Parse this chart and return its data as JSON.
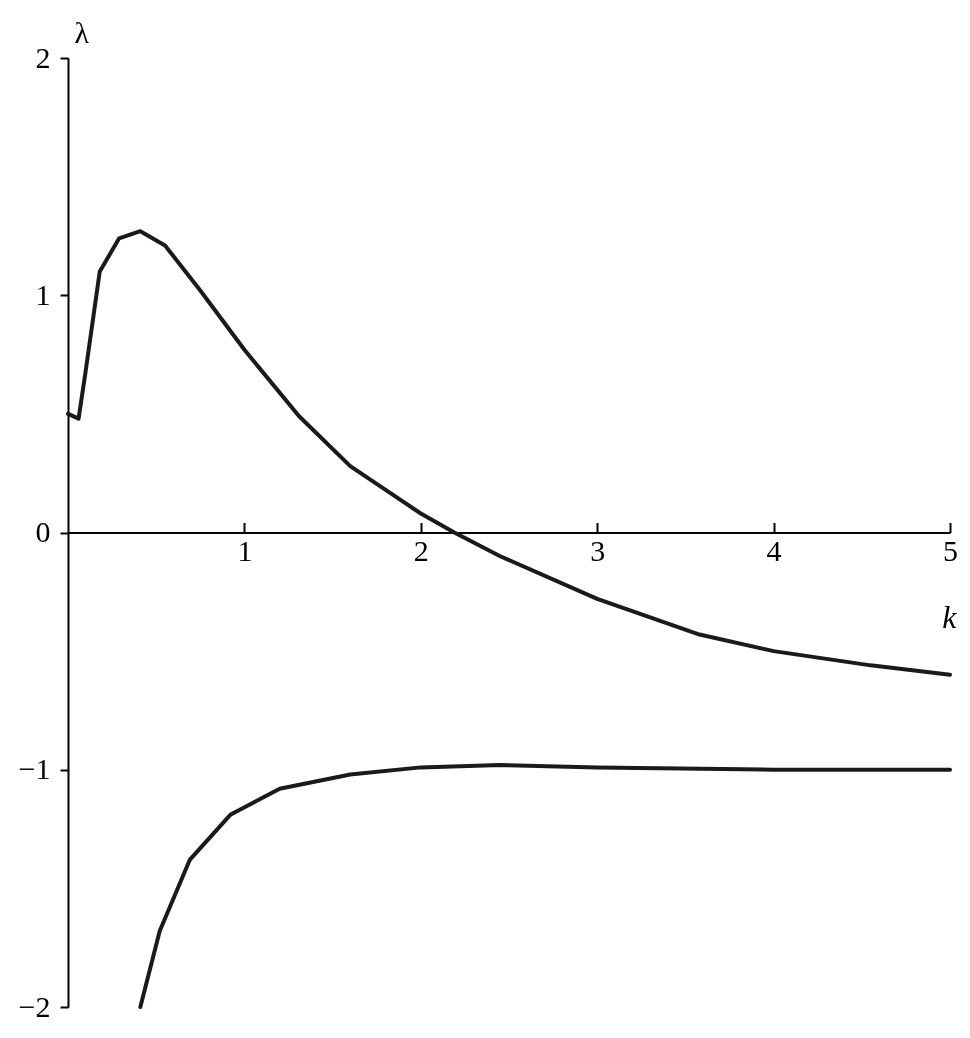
{
  "chart_data": {
    "type": "line",
    "xlabel": "k",
    "ylabel": "λ",
    "xlim": [
      0,
      5
    ],
    "ylim": [
      -2,
      2
    ],
    "xticks": [
      1,
      2,
      3,
      4,
      5
    ],
    "yticks": [
      {
        "value": -2,
        "label": "−2"
      },
      {
        "value": -1,
        "label": "−1"
      },
      0,
      1,
      2
    ],
    "grid": false,
    "series": [
      {
        "color": "#1a1a1a",
        "x": [
          0,
          0.06,
          0.1,
          0.18,
          0.29,
          0.41,
          0.55,
          0.75,
          1,
          1.31,
          1.6,
          2,
          2.19,
          2.45,
          3,
          3.58,
          4,
          4.55,
          5
        ],
        "values": [
          0.5,
          0.48,
          0.68,
          1.1,
          1.24,
          1.27,
          1.21,
          1.02,
          0.77,
          0.49,
          0.28,
          0.08,
          0,
          -0.1,
          -0.28,
          -0.43,
          -0.5,
          -0.56,
          -0.6
        ]
      },
      {
        "color": "#1a1a1a",
        "x": [
          0.41,
          0.52,
          0.69,
          0.92,
          1.2,
          1.6,
          2,
          2.45,
          3,
          4,
          5
        ],
        "values": [
          -2,
          -1.68,
          -1.38,
          -1.19,
          -1.08,
          -1.02,
          -0.99,
          -0.98,
          -0.99,
          -1,
          -1
        ]
      }
    ]
  }
}
